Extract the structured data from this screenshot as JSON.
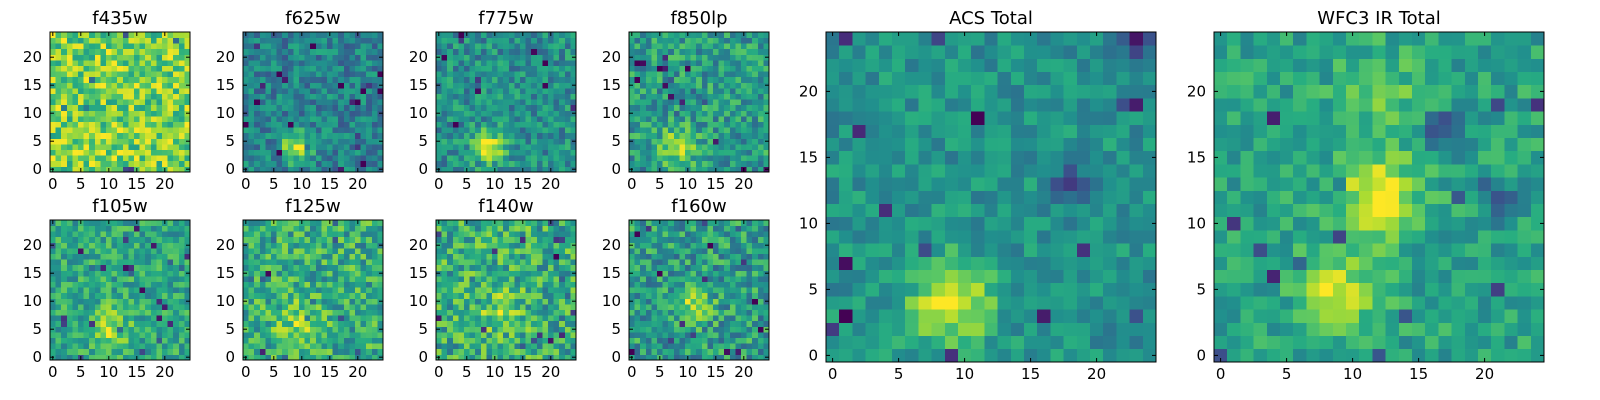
{
  "figure": {
    "background": "#ffffff",
    "colormap": "viridis"
  },
  "chart_data": [
    {
      "type": "heatmap",
      "title": "f435w",
      "grid": false,
      "x_ticks": [
        "0",
        "5",
        "10",
        "15",
        "20"
      ],
      "y_ticks": [
        "0",
        "5",
        "10",
        "15",
        "20"
      ],
      "xlim": [
        -0.5,
        24.5
      ],
      "ylim": [
        -0.5,
        24.5
      ],
      "cells": [
        25,
        25
      ],
      "pattern": {
        "base": 0.78,
        "noise": 0.22,
        "blobs": [
          {
            "x": 10,
            "y": 3.5,
            "amp": 0.05,
            "sigma": 2.5
          }
        ]
      }
    },
    {
      "type": "heatmap",
      "title": "f625w",
      "grid": false,
      "x_ticks": [
        "0",
        "5",
        "10",
        "15",
        "20"
      ],
      "y_ticks": [
        "0",
        "5",
        "10",
        "15",
        "20"
      ],
      "xlim": [
        -0.5,
        24.5
      ],
      "ylim": [
        -0.5,
        24.5
      ],
      "cells": [
        25,
        25
      ],
      "pattern": {
        "base": 0.45,
        "noise": 0.18,
        "blobs": [
          {
            "x": 9,
            "y": 4,
            "amp": 0.5,
            "sigma": 1.8
          }
        ]
      }
    },
    {
      "type": "heatmap",
      "title": "f775w",
      "grid": false,
      "x_ticks": [
        "0",
        "5",
        "10",
        "15",
        "20"
      ],
      "y_ticks": [
        "0",
        "5",
        "10",
        "15",
        "20"
      ],
      "xlim": [
        -0.5,
        24.5
      ],
      "ylim": [
        -0.5,
        24.5
      ],
      "cells": [
        25,
        25
      ],
      "pattern": {
        "base": 0.5,
        "noise": 0.18,
        "blobs": [
          {
            "x": 9,
            "y": 4,
            "amp": 0.45,
            "sigma": 2
          }
        ]
      }
    },
    {
      "type": "heatmap",
      "title": "f850lp",
      "grid": false,
      "x_ticks": [
        "0",
        "5",
        "10",
        "15",
        "20"
      ],
      "y_ticks": [
        "0",
        "5",
        "10",
        "15",
        "20"
      ],
      "xlim": [
        -0.5,
        24.5
      ],
      "ylim": [
        -0.5,
        24.5
      ],
      "cells": [
        25,
        25
      ],
      "pattern": {
        "base": 0.55,
        "noise": 0.2,
        "blobs": [
          {
            "x": 8,
            "y": 4,
            "amp": 0.35,
            "sigma": 2.2
          }
        ]
      }
    },
    {
      "type": "heatmap",
      "title": "f105w",
      "grid": false,
      "x_ticks": [
        "0",
        "5",
        "10",
        "15",
        "20"
      ],
      "y_ticks": [
        "0",
        "5",
        "10",
        "15",
        "20"
      ],
      "xlim": [
        -0.5,
        24.5
      ],
      "ylim": [
        -0.5,
        24.5
      ],
      "cells": [
        25,
        25
      ],
      "pattern": {
        "base": 0.6,
        "noise": 0.18,
        "blobs": [
          {
            "x": 10,
            "y": 5,
            "amp": 0.3,
            "sigma": 2.5
          }
        ]
      }
    },
    {
      "type": "heatmap",
      "title": "f125w",
      "grid": false,
      "x_ticks": [
        "0",
        "5",
        "10",
        "15",
        "20"
      ],
      "y_ticks": [
        "0",
        "5",
        "10",
        "15",
        "20"
      ],
      "xlim": [
        -0.5,
        24.5
      ],
      "ylim": [
        -0.5,
        24.5
      ],
      "cells": [
        25,
        25
      ],
      "pattern": {
        "base": 0.62,
        "noise": 0.22,
        "blobs": [
          {
            "x": 10,
            "y": 6,
            "amp": 0.2,
            "sigma": 3
          }
        ]
      }
    },
    {
      "type": "heatmap",
      "title": "f140w",
      "grid": false,
      "x_ticks": [
        "0",
        "5",
        "10",
        "15",
        "20"
      ],
      "y_ticks": [
        "0",
        "5",
        "10",
        "15",
        "20"
      ],
      "xlim": [
        -0.5,
        24.5
      ],
      "ylim": [
        -0.5,
        24.5
      ],
      "cells": [
        25,
        25
      ],
      "pattern": {
        "base": 0.62,
        "noise": 0.24,
        "blobs": [
          {
            "x": 11,
            "y": 8,
            "amp": 0.15,
            "sigma": 3
          }
        ]
      }
    },
    {
      "type": "heatmap",
      "title": "f160w",
      "grid": false,
      "x_ticks": [
        "0",
        "5",
        "10",
        "15",
        "20"
      ],
      "y_ticks": [
        "0",
        "5",
        "10",
        "15",
        "20"
      ],
      "xlim": [
        -0.5,
        24.5
      ],
      "ylim": [
        -0.5,
        24.5
      ],
      "cells": [
        25,
        25
      ],
      "pattern": {
        "base": 0.55,
        "noise": 0.22,
        "blobs": [
          {
            "x": 11,
            "y": 10,
            "amp": 0.25,
            "sigma": 2.5
          }
        ]
      }
    },
    {
      "type": "heatmap",
      "title": "ACS Total",
      "grid": false,
      "x_ticks": [
        "0",
        "5",
        "10",
        "15",
        "20"
      ],
      "y_ticks": [
        "0",
        "5",
        "10",
        "15",
        "20"
      ],
      "xlim": [
        -0.5,
        24.5
      ],
      "ylim": [
        -0.5,
        24.5
      ],
      "cells": [
        25,
        25
      ],
      "pattern": {
        "base": 0.52,
        "noise": 0.13,
        "blobs": [
          {
            "x": 9,
            "y": 4,
            "amp": 0.45,
            "sigma": 2.2
          },
          {
            "x": 18,
            "y": 13,
            "amp": -0.35,
            "sigma": 0.9
          },
          {
            "x": 23,
            "y": 24,
            "amp": -0.45,
            "sigma": 0.9
          }
        ]
      }
    },
    {
      "type": "heatmap",
      "title": "WFC3 IR Total",
      "grid": false,
      "x_ticks": [
        "0",
        "5",
        "10",
        "15",
        "20"
      ],
      "y_ticks": [
        "0",
        "5",
        "10",
        "15",
        "20"
      ],
      "xlim": [
        -0.5,
        24.5
      ],
      "ylim": [
        -0.5,
        24.5
      ],
      "cells": [
        25,
        25
      ],
      "pattern": {
        "base": 0.58,
        "noise": 0.14,
        "blobs": [
          {
            "x": 12,
            "y": 12,
            "amp": 0.4,
            "sigma": 2.2
          },
          {
            "x": 9,
            "y": 5,
            "amp": 0.35,
            "sigma": 2
          },
          {
            "x": 12,
            "y": 20,
            "amp": 0.2,
            "sigma": 2
          },
          {
            "x": 21,
            "y": 12,
            "amp": -0.35,
            "sigma": 1
          },
          {
            "x": 17,
            "y": 17,
            "amp": -0.35,
            "sigma": 1
          }
        ]
      }
    }
  ]
}
